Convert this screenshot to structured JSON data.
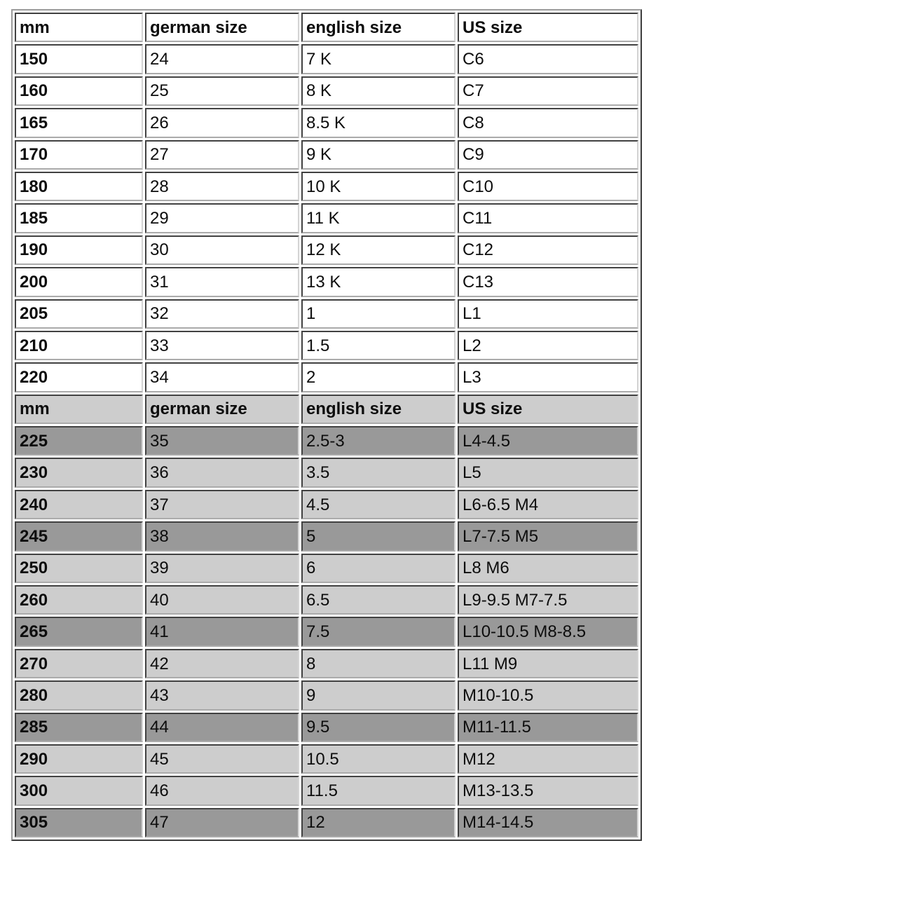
{
  "page": {
    "background": "#ffffff"
  },
  "table": {
    "column_keys": [
      "mm",
      "german-size",
      "english-size",
      "us-size"
    ],
    "colors": {
      "white_row_bg": "#ffffff",
      "light_row_bg": "#cdcdcd",
      "dark_row_bg": "#999999",
      "cell_border_dark": "#414141",
      "cell_border_light": "#d4d4d4",
      "text": "#0d0d0d"
    },
    "sections": [
      {
        "header": [
          "mm",
          "german size",
          "english size",
          "US size"
        ],
        "header_shade": "white",
        "rows": [
          {
            "shade": "white",
            "cells": [
              "150",
              "24",
              "7 K",
              "C6"
            ]
          },
          {
            "shade": "white",
            "cells": [
              "160",
              "25",
              "8 K",
              "C7"
            ]
          },
          {
            "shade": "white",
            "cells": [
              "165",
              "26",
              "8.5 K",
              "C8"
            ]
          },
          {
            "shade": "white",
            "cells": [
              "170",
              "27",
              "9 K",
              "C9"
            ]
          },
          {
            "shade": "white",
            "cells": [
              "180",
              "28",
              "10 K",
              "C10"
            ]
          },
          {
            "shade": "white",
            "cells": [
              "185",
              "29",
              "11 K",
              "C11"
            ]
          },
          {
            "shade": "white",
            "cells": [
              "190",
              "30",
              "12 K",
              "C12"
            ]
          },
          {
            "shade": "white",
            "cells": [
              "200",
              "31",
              "13 K",
              "C13"
            ]
          },
          {
            "shade": "white",
            "cells": [
              "205",
              "32",
              "1",
              "L1"
            ]
          },
          {
            "shade": "white",
            "cells": [
              "210",
              "33",
              "1.5",
              "L2"
            ]
          },
          {
            "shade": "white",
            "cells": [
              "220",
              "34",
              "2",
              "L3"
            ]
          }
        ]
      },
      {
        "header": [
          "mm",
          "german size",
          "english size",
          "US size"
        ],
        "header_shade": "light",
        "rows": [
          {
            "shade": "dark",
            "cells": [
              "225",
              "35",
              "2.5-3",
              "L4-4.5"
            ]
          },
          {
            "shade": "light",
            "cells": [
              "230",
              "36",
              "3.5",
              "L5"
            ]
          },
          {
            "shade": "light",
            "cells": [
              "240",
              "37",
              "4.5",
              "L6-6.5 M4"
            ]
          },
          {
            "shade": "dark",
            "cells": [
              "245",
              "38",
              "5",
              "L7-7.5 M5"
            ]
          },
          {
            "shade": "light",
            "cells": [
              "250",
              "39",
              "6",
              "L8 M6"
            ]
          },
          {
            "shade": "light",
            "cells": [
              "260",
              "40",
              "6.5",
              "L9-9.5 M7-7.5"
            ]
          },
          {
            "shade": "dark",
            "cells": [
              "265",
              "41",
              "7.5",
              "L10-10.5 M8-8.5"
            ]
          },
          {
            "shade": "light",
            "cells": [
              "270",
              "42",
              "8",
              "L11 M9"
            ]
          },
          {
            "shade": "light",
            "cells": [
              "280",
              "43",
              "9",
              "M10-10.5"
            ]
          },
          {
            "shade": "dark",
            "cells": [
              "285",
              "44",
              "9.5",
              "M11-11.5"
            ]
          },
          {
            "shade": "light",
            "cells": [
              "290",
              "45",
              "10.5",
              "M12"
            ]
          },
          {
            "shade": "light",
            "cells": [
              "300",
              "46",
              "11.5",
              "M13-13.5"
            ]
          },
          {
            "shade": "dark",
            "cells": [
              "305",
              "47",
              "12",
              "M14-14.5"
            ]
          }
        ]
      }
    ]
  }
}
